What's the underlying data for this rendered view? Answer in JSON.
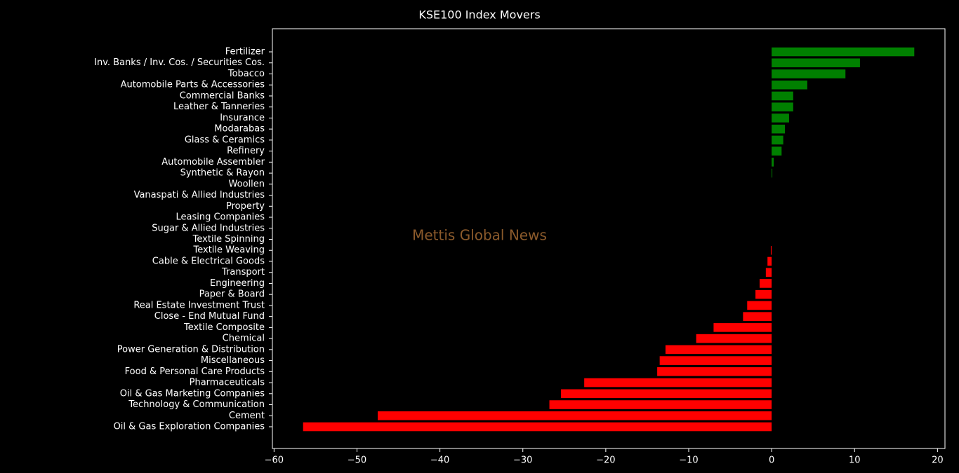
{
  "chart_data": {
    "type": "barh",
    "title": "KSE100 Index Movers",
    "annotation": "Mettis Global News",
    "categories": [
      "Fertilizer",
      "Inv. Banks / Inv. Cos. / Securities Cos.",
      "Tobacco",
      "Automobile Parts & Accessories",
      "Commercial Banks",
      "Leather & Tanneries",
      "Insurance",
      "Modarabas",
      "Glass & Ceramics",
      "Refinery",
      "Automobile Assembler",
      "Synthetic & Rayon",
      "Woollen",
      "Vanaspati & Allied Industries",
      "Property",
      "Leasing Companies",
      "Sugar & Allied Industries",
      "Textile Spinning",
      "Textile Weaving",
      "Cable & Electrical Goods",
      "Transport",
      "Engineering",
      "Paper & Board",
      "Real Estate Investment Trust",
      "Close - End Mutual Fund",
      "Textile Composite",
      "Chemical",
      "Power Generation & Distribution",
      "Miscellaneous",
      "Food & Personal Care Products",
      "Pharmaceuticals",
      "Oil & Gas Marketing Companies",
      "Technology & Communication",
      "Cement",
      "Oil & Gas Exploration Companies"
    ],
    "values": [
      17.2,
      10.65,
      8.9,
      4.3,
      2.6,
      2.6,
      2.1,
      1.6,
      1.4,
      1.2,
      0.25,
      0.08,
      0,
      0,
      0,
      0,
      0,
      0,
      -0.1,
      -0.5,
      -0.7,
      -1.45,
      -1.95,
      -2.95,
      -3.45,
      -7.0,
      -9.1,
      -12.8,
      -13.5,
      -13.8,
      -22.6,
      -25.4,
      -26.8,
      -47.5,
      -56.5
    ],
    "positive_color": "#008000",
    "negative_color": "#ff0000",
    "xlim": [
      -60.2,
      20.9
    ],
    "xticks": [
      {
        "value": -60,
        "label": "−60"
      },
      {
        "value": -50,
        "label": "−50"
      },
      {
        "value": -40,
        "label": "−40"
      },
      {
        "value": -30,
        "label": "−30"
      },
      {
        "value": -20,
        "label": "−20"
      },
      {
        "value": -10,
        "label": "−10"
      },
      0,
      10,
      20
    ]
  }
}
